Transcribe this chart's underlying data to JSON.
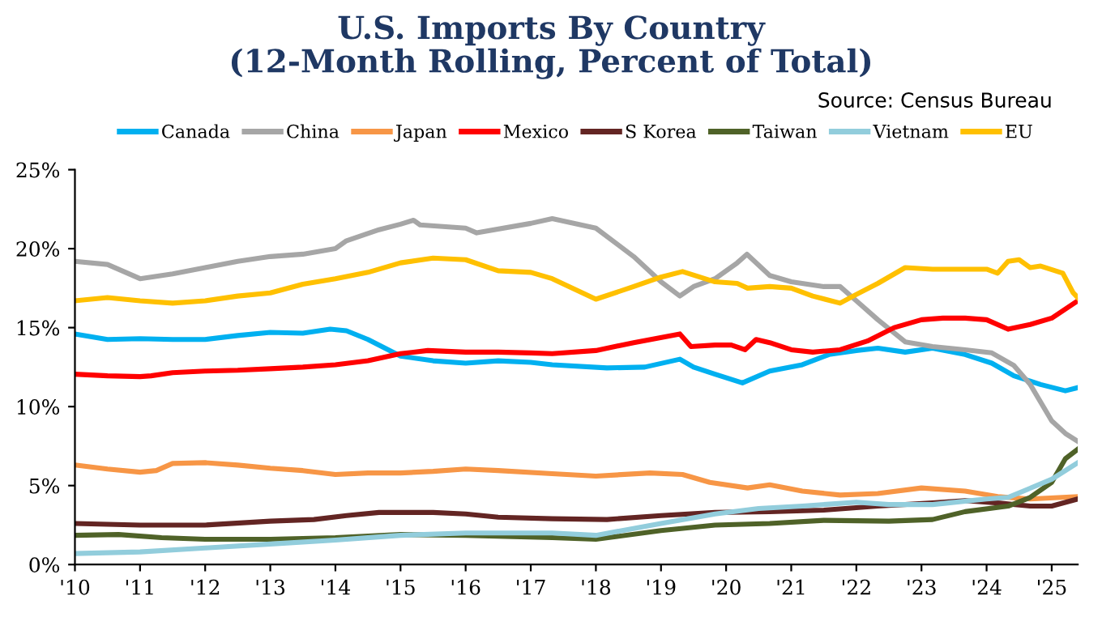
{
  "chart_data": {
    "type": "line",
    "title": "U.S. Imports By Country\n(12-Month Rolling, Percent of Total)",
    "annotations": [
      "Source: Census Bureau"
    ],
    "xlim": [
      2010,
      2025.4
    ],
    "xticks": [
      {
        "value": 2010,
        "label": "'10"
      },
      {
        "value": 2011,
        "label": "'11"
      },
      {
        "value": 2012,
        "label": "'12"
      },
      {
        "value": 2013,
        "label": "'13"
      },
      {
        "value": 2014,
        "label": "'14"
      },
      {
        "value": 2015,
        "label": "'15"
      },
      {
        "value": 2016,
        "label": "'16"
      },
      {
        "value": 2017,
        "label": "'17"
      },
      {
        "value": 2018,
        "label": "'18"
      },
      {
        "value": 2019,
        "label": "'19"
      },
      {
        "value": 2020,
        "label": "'20"
      },
      {
        "value": 2021,
        "label": "'21"
      },
      {
        "value": 2022,
        "label": "'22"
      },
      {
        "value": 2023,
        "label": "'23"
      },
      {
        "value": 2024,
        "label": "'24"
      },
      {
        "value": 2025,
        "label": "'25"
      }
    ],
    "ylim": [
      0,
      25
    ],
    "yticks": [
      {
        "value": 0,
        "label": "0%"
      },
      {
        "value": 5,
        "label": "5%"
      },
      {
        "value": 10,
        "label": "10%"
      },
      {
        "value": 15,
        "label": "15%"
      },
      {
        "value": 20,
        "label": "20%"
      },
      {
        "value": 25,
        "label": "25%"
      }
    ],
    "grid": false,
    "legend": "top",
    "marker": "none",
    "line_style": "solid",
    "series": [
      {
        "name": "Canada",
        "color": "#00b0f0",
        "x": [
          2010.0,
          2010.5,
          2011.0,
          2011.5,
          2012.0,
          2012.5,
          2013.0,
          2013.5,
          2013.92,
          2014.17,
          2014.5,
          2015.0,
          2015.5,
          2016.0,
          2016.5,
          2017.0,
          2017.33,
          2018.17,
          2018.75,
          2019.29,
          2019.5,
          2019.83,
          2020.25,
          2020.67,
          2021.17,
          2021.58,
          2022.0,
          2022.33,
          2022.75,
          2023.17,
          2023.67,
          2024.08,
          2024.42,
          2024.83,
          2025.21,
          2025.4
        ],
        "values": [
          14.6,
          14.25,
          14.3,
          14.25,
          14.25,
          14.5,
          14.7,
          14.65,
          14.9,
          14.8,
          14.25,
          13.2,
          12.9,
          12.75,
          12.9,
          12.8,
          12.65,
          12.45,
          12.5,
          13.0,
          12.5,
          12.05,
          11.5,
          12.25,
          12.65,
          13.3,
          13.55,
          13.7,
          13.45,
          13.7,
          13.3,
          12.75,
          11.95,
          11.4,
          11.0,
          11.2
        ]
      },
      {
        "name": "China",
        "color": "#a6a6a6",
        "x": [
          2010.0,
          2010.5,
          2011.0,
          2011.5,
          2012.0,
          2012.5,
          2013.0,
          2013.5,
          2014.0,
          2014.17,
          2014.67,
          2015.0,
          2015.2,
          2015.3,
          2016.0,
          2016.17,
          2017.0,
          2017.33,
          2018.0,
          2018.58,
          2019.0,
          2019.29,
          2019.5,
          2019.83,
          2020.17,
          2020.32,
          2020.67,
          2021.0,
          2021.5,
          2021.75,
          2022.0,
          2022.33,
          2022.75,
          2023.17,
          2023.67,
          2024.08,
          2024.42,
          2024.67,
          2025.0,
          2025.21,
          2025.4
        ],
        "values": [
          19.2,
          19.0,
          18.1,
          18.4,
          18.8,
          19.2,
          19.5,
          19.65,
          20.0,
          20.5,
          21.2,
          21.55,
          21.8,
          21.5,
          21.3,
          21.0,
          21.6,
          21.9,
          21.3,
          19.5,
          17.9,
          17.0,
          17.6,
          18.1,
          19.1,
          19.65,
          18.3,
          17.9,
          17.6,
          17.6,
          16.7,
          15.5,
          14.1,
          13.8,
          13.6,
          13.4,
          12.6,
          11.4,
          9.1,
          8.3,
          7.8
        ]
      },
      {
        "name": "Japan",
        "color": "#f79646",
        "x": [
          2010.0,
          2010.5,
          2011.0,
          2011.25,
          2011.5,
          2012.0,
          2012.5,
          2013.0,
          2013.5,
          2014.0,
          2014.5,
          2015.0,
          2015.5,
          2016.0,
          2016.5,
          2017.33,
          2018.0,
          2018.83,
          2019.33,
          2019.75,
          2020.33,
          2020.67,
          2021.17,
          2021.75,
          2022.33,
          2023.0,
          2023.67,
          2024.17,
          2024.67,
          2025.4
        ],
        "values": [
          6.3,
          6.05,
          5.85,
          5.95,
          6.4,
          6.45,
          6.3,
          6.1,
          5.95,
          5.7,
          5.8,
          5.8,
          5.9,
          6.05,
          5.95,
          5.75,
          5.6,
          5.8,
          5.7,
          5.2,
          4.85,
          5.05,
          4.65,
          4.4,
          4.5,
          4.85,
          4.65,
          4.3,
          4.15,
          4.3
        ]
      },
      {
        "name": "Mexico",
        "color": "#ff0000",
        "x": [
          2010.0,
          2010.5,
          2011.0,
          2011.17,
          2011.5,
          2012.0,
          2012.5,
          2013.0,
          2013.5,
          2014.0,
          2014.5,
          2015.0,
          2015.42,
          2016.0,
          2016.5,
          2017.0,
          2017.33,
          2018.0,
          2018.58,
          2019.29,
          2019.46,
          2019.83,
          2020.08,
          2020.29,
          2020.46,
          2020.67,
          2021.0,
          2021.33,
          2021.75,
          2022.17,
          2022.58,
          2023.0,
          2023.33,
          2023.67,
          2024.0,
          2024.33,
          2024.67,
          2025.0,
          2025.4
        ],
        "values": [
          12.05,
          11.95,
          11.9,
          11.95,
          12.15,
          12.25,
          12.3,
          12.4,
          12.5,
          12.65,
          12.9,
          13.35,
          13.55,
          13.45,
          13.45,
          13.4,
          13.35,
          13.55,
          14.05,
          14.6,
          13.8,
          13.9,
          13.9,
          13.6,
          14.25,
          14.05,
          13.6,
          13.45,
          13.6,
          14.15,
          15.0,
          15.5,
          15.6,
          15.6,
          15.5,
          14.9,
          15.2,
          15.6,
          16.7
        ]
      },
      {
        "name": "S Korea",
        "color": "#632523",
        "x": [
          2010.0,
          2011.0,
          2012.0,
          2013.0,
          2013.67,
          2014.17,
          2014.67,
          2015.5,
          2016.0,
          2016.5,
          2017.33,
          2018.17,
          2019.0,
          2019.83,
          2020.67,
          2021.5,
          2022.33,
          2023.17,
          2023.67,
          2024.17,
          2024.67,
          2025.0,
          2025.4
        ],
        "values": [
          2.6,
          2.5,
          2.5,
          2.75,
          2.85,
          3.1,
          3.3,
          3.3,
          3.2,
          3.0,
          2.9,
          2.85,
          3.1,
          3.3,
          3.35,
          3.45,
          3.7,
          3.9,
          4.05,
          3.9,
          3.7,
          3.7,
          4.15
        ]
      },
      {
        "name": "Taiwan",
        "color": "#4f6228",
        "x": [
          2010.0,
          2010.67,
          2011.33,
          2012.0,
          2013.0,
          2014.0,
          2015.0,
          2016.0,
          2017.33,
          2018.0,
          2019.0,
          2019.83,
          2020.67,
          2021.5,
          2022.5,
          2023.17,
          2023.67,
          2024.33,
          2024.67,
          2025.0,
          2025.21,
          2025.4
        ],
        "values": [
          1.85,
          1.9,
          1.7,
          1.6,
          1.6,
          1.7,
          1.9,
          1.85,
          1.7,
          1.6,
          2.15,
          2.5,
          2.6,
          2.8,
          2.75,
          2.85,
          3.35,
          3.7,
          4.25,
          5.2,
          6.7,
          7.3
        ]
      },
      {
        "name": "Vietnam",
        "color": "#92cddc",
        "x": [
          2010.0,
          2011.0,
          2012.0,
          2013.0,
          2014.0,
          2015.0,
          2016.0,
          2017.33,
          2018.0,
          2019.0,
          2019.83,
          2020.5,
          2021.17,
          2022.0,
          2022.5,
          2023.17,
          2024.0,
          2024.33,
          2025.0,
          2025.4
        ],
        "values": [
          0.7,
          0.8,
          1.05,
          1.3,
          1.55,
          1.85,
          2.0,
          2.0,
          1.85,
          2.6,
          3.2,
          3.55,
          3.7,
          3.95,
          3.8,
          3.8,
          4.15,
          4.25,
          5.4,
          6.45
        ]
      },
      {
        "name": "EU",
        "color": "#ffc000",
        "x": [
          2010.0,
          2010.5,
          2011.0,
          2011.5,
          2012.0,
          2012.5,
          2013.0,
          2013.5,
          2014.0,
          2014.5,
          2015.0,
          2015.5,
          2016.0,
          2016.5,
          2017.0,
          2017.33,
          2018.0,
          2018.58,
          2019.0,
          2019.33,
          2019.83,
          2020.17,
          2020.33,
          2020.67,
          2021.0,
          2021.33,
          2021.75,
          2022.0,
          2022.33,
          2022.75,
          2023.17,
          2023.67,
          2024.0,
          2024.17,
          2024.33,
          2024.5,
          2024.67,
          2024.83,
          2025.17,
          2025.33,
          2025.4
        ],
        "values": [
          16.7,
          16.9,
          16.7,
          16.55,
          16.7,
          17.0,
          17.2,
          17.75,
          18.1,
          18.5,
          19.1,
          19.4,
          19.3,
          18.6,
          18.5,
          18.1,
          16.8,
          17.6,
          18.2,
          18.55,
          17.9,
          17.8,
          17.5,
          17.6,
          17.5,
          17.0,
          16.55,
          17.1,
          17.8,
          18.8,
          18.7,
          18.7,
          18.7,
          18.45,
          19.2,
          19.3,
          18.8,
          18.9,
          18.45,
          17.2,
          16.9
        ]
      }
    ]
  }
}
